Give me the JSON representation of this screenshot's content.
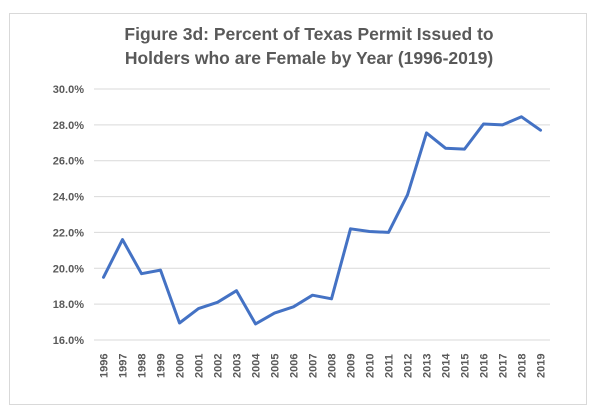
{
  "chart_data": {
    "type": "line",
    "title_lines": [
      "Figure 3d: Percent of Texas Permit Issued to",
      "Holders who are Female by Year (1996-2019)"
    ],
    "xlabel": "",
    "ylabel": "",
    "x": [
      "1996",
      "1997",
      "1998",
      "1999",
      "2000",
      "2001",
      "2002",
      "2003",
      "2004",
      "2005",
      "2006",
      "2007",
      "2008",
      "2009",
      "2010",
      "2011",
      "2012",
      "2013",
      "2014",
      "2015",
      "2016",
      "2017",
      "2018",
      "2019"
    ],
    "series": [
      {
        "values": [
          19.5,
          21.6,
          19.7,
          19.9,
          16.95,
          17.75,
          18.1,
          18.75,
          16.9,
          17.5,
          17.85,
          18.5,
          18.3,
          22.2,
          22.05,
          22.0,
          24.1,
          27.55,
          26.7,
          26.65,
          28.05,
          28.0,
          28.45,
          27.7
        ],
        "color": "#4472c4"
      }
    ],
    "ylim": [
      16.0,
      30.0
    ],
    "yticks": [
      16.0,
      18.0,
      20.0,
      22.0,
      24.0,
      26.0,
      28.0,
      30.0
    ],
    "ytick_labels": [
      "16.0%",
      "18.0%",
      "20.0%",
      "22.0%",
      "24.0%",
      "26.0%",
      "28.0%",
      "30.0%"
    ],
    "grid": true,
    "grid_color": "#d9d9d9",
    "legend": "none"
  }
}
